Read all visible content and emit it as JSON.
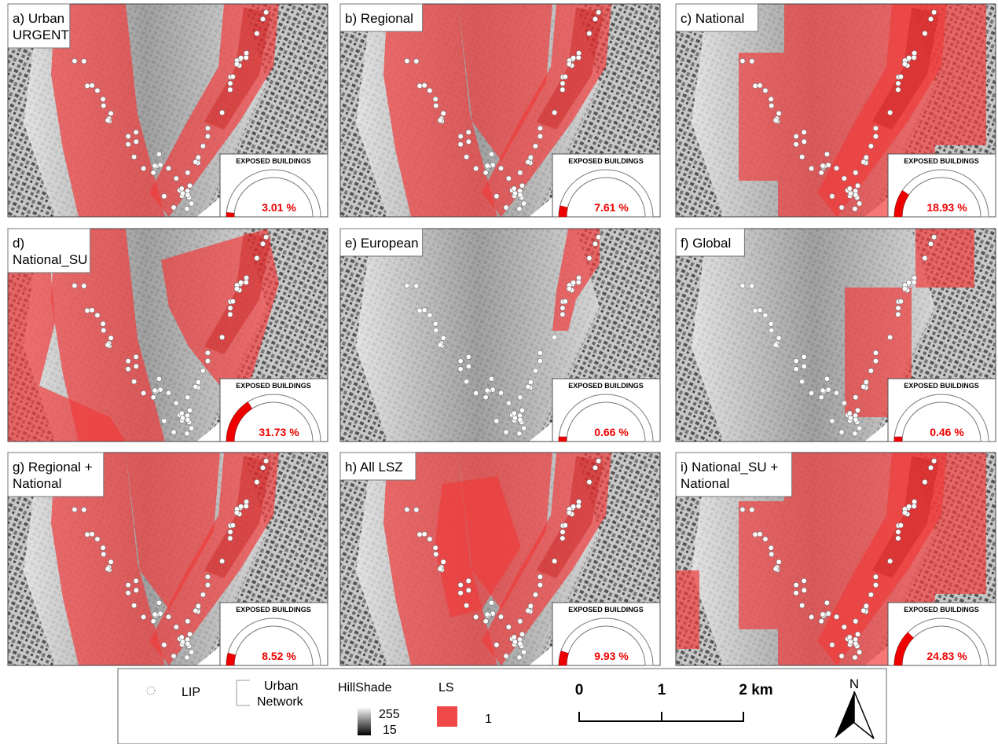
{
  "panels": [
    {
      "label": [
        "a) Urban",
        "URGENT"
      ],
      "gauge_title": "EXPOSED BUILDINGS",
      "exposed": {
        "value": 3.01,
        "label": "3.01 %"
      }
    },
    {
      "label": [
        "b) Regional"
      ],
      "gauge_title": "EXPOSED BUILDINGS",
      "exposed": {
        "value": 7.61,
        "label": "7.61 %"
      }
    },
    {
      "label": [
        "c) National"
      ],
      "gauge_title": "EXPOSED BUILDINGS",
      "exposed": {
        "value": 18.93,
        "label": "18.93 %"
      }
    },
    {
      "label": [
        "d)",
        "National_SU"
      ],
      "gauge_title": "EXPOSED BUILDINGS",
      "exposed": {
        "value": 31.73,
        "label": "31.73 %"
      }
    },
    {
      "label": [
        "e) European"
      ],
      "gauge_title": "EXPOSED BUILDINGS",
      "exposed": {
        "value": 0.66,
        "label": "0.66 %"
      }
    },
    {
      "label": [
        "f) Global"
      ],
      "gauge_title": "EXPOSED BUILDINGS",
      "exposed": {
        "value": 0.46,
        "label": "0.46 %"
      }
    },
    {
      "label": [
        "g) Regional +",
        "National"
      ],
      "gauge_title": "EXPOSED BUILDINGS",
      "exposed": {
        "value": 8.52,
        "label": "8.52 %"
      }
    },
    {
      "label": [
        "h) All LSZ"
      ],
      "gauge_title": "EXPOSED BUILDINGS",
      "exposed": {
        "value": 9.93,
        "label": "9.93 %"
      }
    },
    {
      "label": [
        "i) National_SU +",
        "National"
      ],
      "gauge_title": "EXPOSED BUILDINGS",
      "exposed": {
        "value": 24.83,
        "label": "24.83 %"
      }
    }
  ],
  "legend": {
    "lip": "LIP",
    "network": [
      "Urban",
      "Network"
    ],
    "hillshade": {
      "title": "HillShade",
      "high": "255",
      "low": "15"
    },
    "ls": {
      "title": "LS",
      "value": "1"
    }
  },
  "scale": {
    "ticks": [
      "0",
      "1",
      "2 km"
    ]
  },
  "north": "N"
}
